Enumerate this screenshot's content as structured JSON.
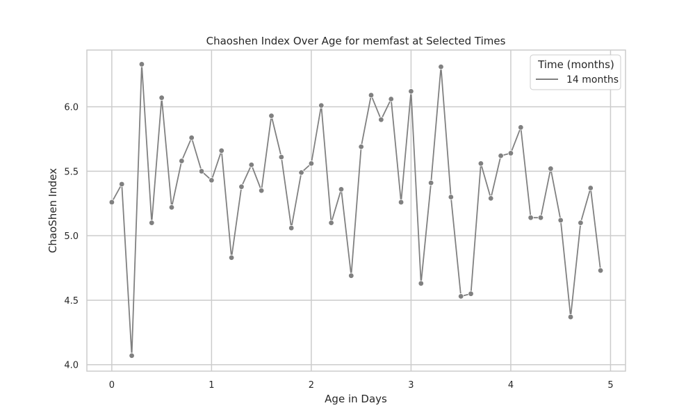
{
  "chart_data": {
    "type": "line",
    "title": "Chaoshen Index Over Age for memfast at Selected Times",
    "xlabel": "Age in Days",
    "ylabel": "ChaoShen Index",
    "xlim": [
      -0.25,
      5.15
    ],
    "ylim": [
      3.95,
      6.44
    ],
    "xticks": [
      0,
      1,
      2,
      3,
      4,
      5
    ],
    "xtick_labels": [
      "0",
      "1",
      "2",
      "3",
      "4",
      "5"
    ],
    "yticks": [
      4.0,
      4.5,
      5.0,
      5.5,
      6.0
    ],
    "ytick_labels": [
      "4.0",
      "4.5",
      "5.0",
      "5.5",
      "6.0"
    ],
    "grid": true,
    "legend": {
      "title": "Time (months)",
      "placement": "top-right"
    },
    "series": [
      {
        "name": "14 months",
        "color": "#808080",
        "marker": "circle",
        "x": [
          0.0,
          0.1,
          0.2,
          0.3,
          0.4,
          0.5,
          0.6,
          0.7,
          0.8,
          0.9,
          1.0,
          1.1,
          1.2,
          1.3,
          1.4,
          1.5,
          1.6,
          1.7,
          1.8,
          1.9,
          2.0,
          2.1,
          2.2,
          2.3,
          2.4,
          2.5,
          2.6,
          2.7,
          2.8,
          2.9,
          3.0,
          3.1,
          3.2,
          3.3,
          3.4,
          3.5,
          3.6,
          3.7,
          3.8,
          3.9,
          4.0,
          4.1,
          4.2,
          4.3,
          4.4,
          4.5,
          4.6,
          4.7,
          4.8,
          4.9
        ],
        "y": [
          5.26,
          5.4,
          4.07,
          6.33,
          5.1,
          6.07,
          5.22,
          5.58,
          5.76,
          5.5,
          5.43,
          5.66,
          4.83,
          5.38,
          5.55,
          5.35,
          5.93,
          5.61,
          5.06,
          5.49,
          5.56,
          6.01,
          5.1,
          5.36,
          4.69,
          5.69,
          6.09,
          5.9,
          6.06,
          5.26,
          6.12,
          4.63,
          5.41,
          6.31,
          5.3,
          4.53,
          4.55,
          5.56,
          5.29,
          5.62,
          5.64,
          5.84,
          5.14,
          5.14,
          5.52,
          5.12,
          4.37,
          5.1,
          5.37,
          4.73
        ]
      }
    ]
  }
}
